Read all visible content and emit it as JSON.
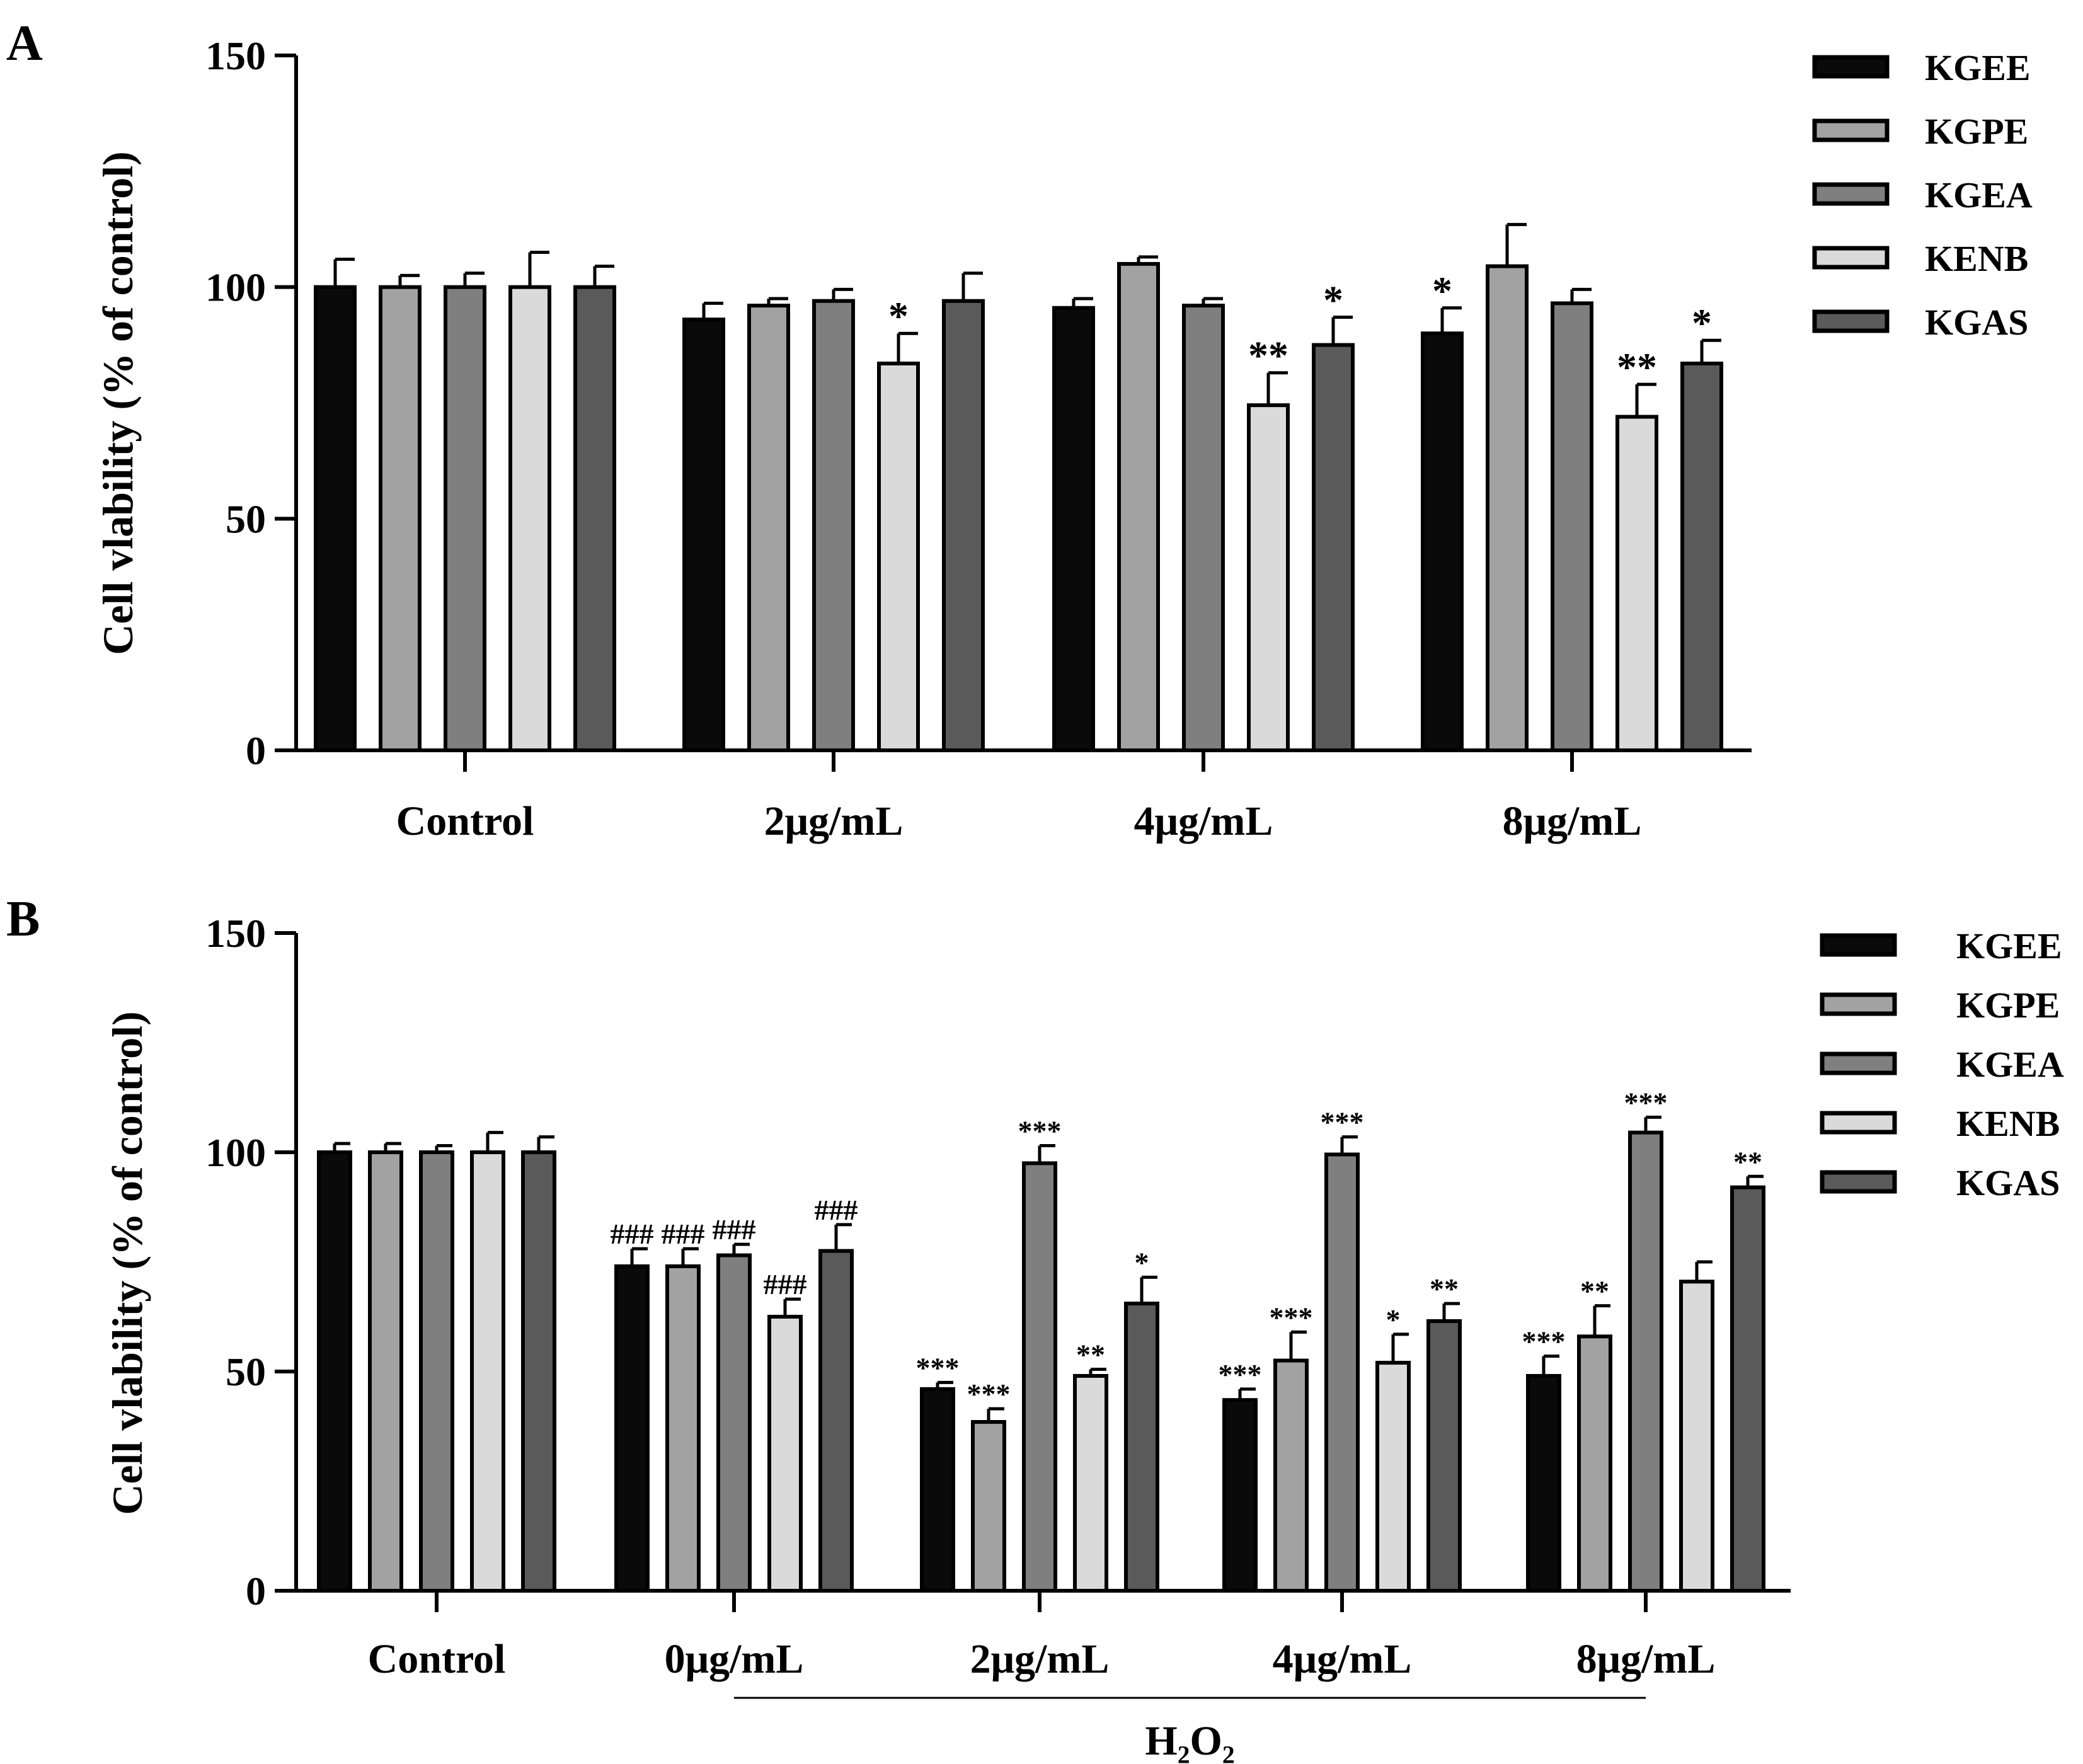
{
  "colors": {
    "KGEE": "#0a0a0a",
    "KGPE": "#a2a2a2",
    "KGEA": "#7f7f7f",
    "KENB": "#dadada",
    "KGAS": "#5a5a5a"
  },
  "chart_data": [
    {
      "panel": "A",
      "type": "bar",
      "ylabel": "Cell vlability (% of control)",
      "ylim": [
        0,
        150
      ],
      "yticks": [
        "0",
        "50",
        "100",
        "150"
      ],
      "categories": [
        "Control",
        "2μg/mL",
        "4μg/mL",
        "8μg/mL"
      ],
      "legend": [
        "KGEE",
        "KGPE",
        "KGEA",
        "KENB",
        "KGAS"
      ],
      "series": [
        {
          "name": "KGEE",
          "values": [
            100,
            93,
            95.5,
            90
          ],
          "errors": [
            6,
            3.5,
            2,
            5.5
          ],
          "sig": [
            "",
            "",
            "",
            "*"
          ]
        },
        {
          "name": "KGPE",
          "values": [
            100,
            96,
            105,
            104.5
          ],
          "errors": [
            2.5,
            1.5,
            1.5,
            9
          ],
          "sig": [
            "",
            "",
            "",
            ""
          ]
        },
        {
          "name": "KGEA",
          "values": [
            100,
            97,
            96,
            96.5
          ],
          "errors": [
            3,
            2.5,
            1.5,
            3
          ],
          "sig": [
            "",
            "",
            "",
            ""
          ]
        },
        {
          "name": "KENB",
          "values": [
            100,
            83.5,
            74.5,
            72
          ],
          "errors": [
            7.5,
            6.5,
            7,
            7
          ],
          "sig": [
            "",
            "*",
            "**",
            "**"
          ]
        },
        {
          "name": "KGAS",
          "values": [
            100,
            97,
            87.5,
            83.5
          ],
          "errors": [
            4.5,
            6,
            6,
            5
          ],
          "sig": [
            "",
            "",
            "*",
            "*"
          ]
        }
      ]
    },
    {
      "panel": "B",
      "type": "bar",
      "ylabel": "Cell vlability (% of control)",
      "ylim": [
        0,
        150
      ],
      "yticks": [
        "0",
        "50",
        "100",
        "150"
      ],
      "categories": [
        "Control",
        "0μg/mL",
        "2μg/mL",
        "4μg/mL",
        "8μg/mL"
      ],
      "group_label": "H₂O₂",
      "legend": [
        "KGEE",
        "KGPE",
        "KGEA",
        "KENB",
        "KGAS"
      ],
      "series": [
        {
          "name": "KGEE",
          "values": [
            100,
            74,
            46,
            43.5,
            49
          ],
          "errors": [
            2,
            4,
            1.5,
            2.5,
            4.5
          ],
          "sig": [
            "",
            "###",
            "***",
            "***",
            "***"
          ]
        },
        {
          "name": "KGPE",
          "values": [
            100,
            74,
            38.5,
            52.5,
            58
          ],
          "errors": [
            2,
            4,
            3,
            6.5,
            7
          ],
          "sig": [
            "",
            "###",
            "***",
            "***",
            "**"
          ]
        },
        {
          "name": "KGEA",
          "values": [
            100,
            76.5,
            97.5,
            99.5,
            104.5
          ],
          "errors": [
            1.5,
            2.5,
            4,
            4,
            3.5
          ],
          "sig": [
            "",
            "###",
            "***",
            "***",
            "***"
          ]
        },
        {
          "name": "KENB",
          "values": [
            100,
            62.5,
            49,
            52,
            70.5
          ],
          "errors": [
            4.5,
            4,
            1.5,
            6.5,
            4.5
          ],
          "sig": [
            "",
            "###",
            "**",
            "*",
            ""
          ]
        },
        {
          "name": "KGAS",
          "values": [
            100,
            77.5,
            65.5,
            61.5,
            92
          ],
          "errors": [
            3.5,
            6,
            6,
            4,
            2.5
          ],
          "sig": [
            "",
            "###",
            "*",
            "**",
            "**"
          ]
        }
      ]
    }
  ]
}
